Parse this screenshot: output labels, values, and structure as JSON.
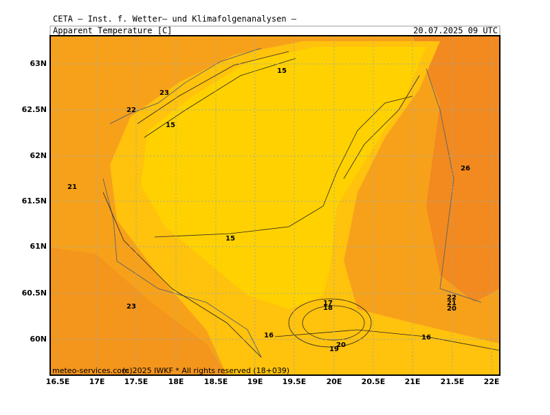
{
  "header": {
    "title": "CETA — Inst. f. Wetter— und Klimafolgenanalysen —",
    "parameter": "Apparent Temperature [C]",
    "valid_time": "20.07.2025 09 UTC"
  },
  "axes": {
    "lon": [
      "16.5E",
      "17E",
      "17.5E",
      "18E",
      "18.5E",
      "19E",
      "19.5E",
      "20E",
      "20.5E",
      "21E",
      "21.5E",
      "22E"
    ],
    "lat": [
      "63N",
      "62.5N",
      "62N",
      "61.5N",
      "61N",
      "60.5N",
      "60N"
    ]
  },
  "contour_labels": [
    15,
    23,
    22,
    15,
    21,
    26,
    15,
    23,
    16,
    16,
    17,
    18,
    19,
    20,
    21,
    22,
    20
  ],
  "footer": {
    "site": "meteo-services.com",
    "copyright": "(c)2025 IWKF * All rights reserved (18+039)"
  }
}
